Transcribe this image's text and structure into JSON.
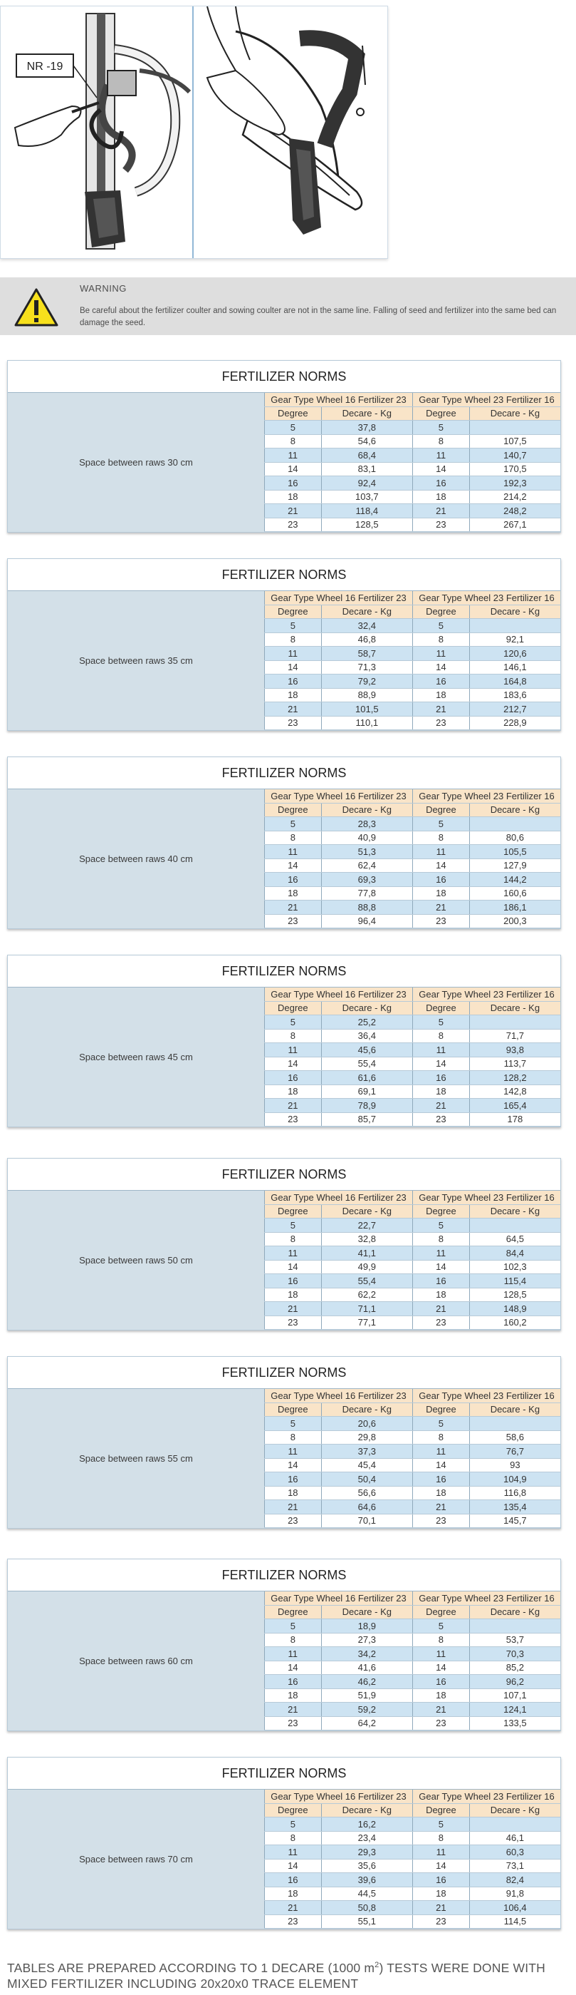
{
  "illustration": {
    "callout_label": "NR -19"
  },
  "warning": {
    "title": "WARNING",
    "text": "Be careful about the fertilizer coulter and sowing coulter are not in the same line. Falling of seed and fertilizer into the same bed can damage the seed."
  },
  "tables": [
    {
      "title": "FERTILIZER NORMS",
      "spacing": "Space between raws 30 cm",
      "group1": "Gear Type Wheel 16 Fertilizer 23",
      "group2": "Gear Type Wheel 23 Fertilizer 16",
      "col_degree": "Degree",
      "col_kg": "Decare - Kg",
      "rows": [
        [
          "5",
          "37,8",
          "5",
          ""
        ],
        [
          "8",
          "54,6",
          "8",
          "107,5"
        ],
        [
          "11",
          "68,4",
          "11",
          "140,7"
        ],
        [
          "14",
          "83,1",
          "14",
          "170,5"
        ],
        [
          "16",
          "92,4",
          "16",
          "192,3"
        ],
        [
          "18",
          "103,7",
          "18",
          "214,2"
        ],
        [
          "21",
          "118,4",
          "21",
          "248,2"
        ],
        [
          "23",
          "128,5",
          "23",
          "267,1"
        ]
      ]
    },
    {
      "title": "FERTILIZER NORMS",
      "spacing": "Space between raws 35 cm",
      "group1": "Gear Type Wheel 16 Fertilizer 23",
      "group2": "Gear Type Wheel 23 Fertilizer 16",
      "col_degree": "Degree",
      "col_kg": "Decare - Kg",
      "rows": [
        [
          "5",
          "32,4",
          "5",
          ""
        ],
        [
          "8",
          "46,8",
          "8",
          "92,1"
        ],
        [
          "11",
          "58,7",
          "11",
          "120,6"
        ],
        [
          "14",
          "71,3",
          "14",
          "146,1"
        ],
        [
          "16",
          "79,2",
          "16",
          "164,8"
        ],
        [
          "18",
          "88,9",
          "18",
          "183,6"
        ],
        [
          "21",
          "101,5",
          "21",
          "212,7"
        ],
        [
          "23",
          "110,1",
          "23",
          "228,9"
        ]
      ]
    },
    {
      "title": "FERTILIZER NORMS",
      "spacing": "Space between raws 40 cm",
      "group1": "Gear Type Wheel 16 Fertilizer 23",
      "group2": "Gear Type Wheel 23 Fertilizer 16",
      "col_degree": "Degree",
      "col_kg": "Decare - Kg",
      "rows": [
        [
          "5",
          "28,3",
          "5",
          ""
        ],
        [
          "8",
          "40,9",
          "8",
          "80,6"
        ],
        [
          "11",
          "51,3",
          "11",
          "105,5"
        ],
        [
          "14",
          "62,4",
          "14",
          "127,9"
        ],
        [
          "16",
          "69,3",
          "16",
          "144,2"
        ],
        [
          "18",
          "77,8",
          "18",
          "160,6"
        ],
        [
          "21",
          "88,8",
          "21",
          "186,1"
        ],
        [
          "23",
          "96,4",
          "23",
          "200,3"
        ]
      ]
    },
    {
      "title": "FERTILIZER NORMS",
      "spacing": "Space between raws 45 cm",
      "group1": "Gear Type Wheel 16 Fertilizer 23",
      "group2": "Gear Type Wheel 23 Fertilizer 16",
      "col_degree": "Degree",
      "col_kg": "Decare - Kg",
      "rows": [
        [
          "5",
          "25,2",
          "5",
          ""
        ],
        [
          "8",
          "36,4",
          "8",
          "71,7"
        ],
        [
          "11",
          "45,6",
          "11",
          "93,8"
        ],
        [
          "14",
          "55,4",
          "14",
          "113,7"
        ],
        [
          "16",
          "61,6",
          "16",
          "128,2"
        ],
        [
          "18",
          "69,1",
          "18",
          "142,8"
        ],
        [
          "21",
          "78,9",
          "21",
          "165,4"
        ],
        [
          "23",
          "85,7",
          "23",
          "178"
        ]
      ]
    },
    {
      "title": "FERTILIZER NORMS",
      "spacing": "Space between raws 50 cm",
      "group1": "Gear Type Wheel 16 Fertilizer 23",
      "group2": "Gear Type Wheel 23 Fertilizer 16",
      "col_degree": "Degree",
      "col_kg": "Decare - Kg",
      "rows": [
        [
          "5",
          "22,7",
          "5",
          ""
        ],
        [
          "8",
          "32,8",
          "8",
          "64,5"
        ],
        [
          "11",
          "41,1",
          "11",
          "84,4"
        ],
        [
          "14",
          "49,9",
          "14",
          "102,3"
        ],
        [
          "16",
          "55,4",
          "16",
          "115,4"
        ],
        [
          "18",
          "62,2",
          "18",
          "128,5"
        ],
        [
          "21",
          "71,1",
          "21",
          "148,9"
        ],
        [
          "23",
          "77,1",
          "23",
          "160,2"
        ]
      ]
    },
    {
      "title": "FERTILIZER NORMS",
      "spacing": "Space between raws 55 cm",
      "group1": "Gear Type Wheel 16 Fertilizer 23",
      "group2": "Gear Type Wheel 23 Fertilizer 16",
      "col_degree": "Degree",
      "col_kg": "Decare - Kg",
      "rows": [
        [
          "5",
          "20,6",
          "5",
          ""
        ],
        [
          "8",
          "29,8",
          "8",
          "58,6"
        ],
        [
          "11",
          "37,3",
          "11",
          "76,7"
        ],
        [
          "14",
          "45,4",
          "14",
          "93"
        ],
        [
          "16",
          "50,4",
          "16",
          "104,9"
        ],
        [
          "18",
          "56,6",
          "18",
          "116,8"
        ],
        [
          "21",
          "64,6",
          "21",
          "135,4"
        ],
        [
          "23",
          "70,1",
          "23",
          "145,7"
        ]
      ]
    },
    {
      "title": "FERTILIZER NORMS",
      "spacing": "Space between raws 60 cm",
      "group1": "Gear Type Wheel 16 Fertilizer 23",
      "group2": "Gear Type Wheel 23 Fertilizer 16",
      "col_degree": "Degree",
      "col_kg": "Decare - Kg",
      "rows": [
        [
          "5",
          "18,9",
          "5",
          ""
        ],
        [
          "8",
          "27,3",
          "8",
          "53,7"
        ],
        [
          "11",
          "34,2",
          "11",
          "70,3"
        ],
        [
          "14",
          "41,6",
          "14",
          "85,2"
        ],
        [
          "16",
          "46,2",
          "16",
          "96,2"
        ],
        [
          "18",
          "51,9",
          "18",
          "107,1"
        ],
        [
          "21",
          "59,2",
          "21",
          "124,1"
        ],
        [
          "23",
          "64,2",
          "23",
          "133,5"
        ]
      ]
    },
    {
      "title": "FERTILIZER NORMS",
      "spacing": "Space between raws 70 cm",
      "group1": "Gear Type Wheel 16 Fertilizer 23",
      "group2": "Gear Type Wheel 23 Fertilizer 16",
      "col_degree": "Degree",
      "col_kg": "Decare - Kg",
      "rows": [
        [
          "5",
          "16,2",
          "5",
          ""
        ],
        [
          "8",
          "23,4",
          "8",
          "46,1"
        ],
        [
          "11",
          "29,3",
          "11",
          "60,3"
        ],
        [
          "14",
          "35,6",
          "14",
          "73,1"
        ],
        [
          "16",
          "39,6",
          "16",
          "82,4"
        ],
        [
          "18",
          "44,5",
          "18",
          "91,8"
        ],
        [
          "21",
          "50,8",
          "21",
          "106,4"
        ],
        [
          "23",
          "55,1",
          "23",
          "114,5"
        ]
      ]
    }
  ],
  "footnote": {
    "before_sup": "TABLES ARE PREPARED ACCORDING TO 1 DECARE (1000 m",
    "sup": "2",
    "after_sup": ") TESTS WERE DONE WITH MIXED FERTILIZER INCLUDING 20x20x0 TRACE ELEMENT"
  }
}
